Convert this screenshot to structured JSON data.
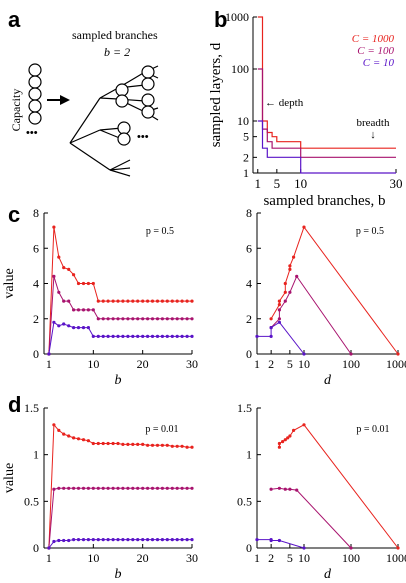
{
  "panel_labels": {
    "a": "a",
    "b": "b",
    "c": "c",
    "d": "d"
  },
  "diagram": {
    "capacity_label": "Capacity",
    "sampled_branches_label": "sampled branches",
    "b_equals": "b = 2",
    "ellipsis": "•••"
  },
  "colors": {
    "c1000": "#e8231e",
    "c100": "#a8136e",
    "c10": "#5a14c8"
  },
  "chart_data": [
    {
      "id": "b",
      "type": "line",
      "xlabel": "sampled branches, b",
      "ylabel": "sampled layers, d",
      "xlim": [
        0,
        30
      ],
      "ylim": [
        1,
        1000
      ],
      "yscale": "log",
      "xticks": [
        "1",
        "5",
        "10",
        "30"
      ],
      "yticks": [
        "1",
        "2",
        "5",
        "10",
        "100",
        "1000"
      ],
      "annotations": [
        "← depth",
        "breadth",
        "↓"
      ],
      "series": [
        {
          "name": "C = 1000",
          "color": "#e8231e",
          "x": [
            1,
            2,
            3,
            4,
            5,
            6,
            7,
            8,
            9,
            10,
            30
          ],
          "y": [
            1000,
            10,
            6,
            5,
            4,
            4,
            4,
            4,
            4,
            3,
            3
          ]
        },
        {
          "name": "C = 100",
          "color": "#a8136e",
          "x": [
            1,
            2,
            3,
            4,
            5,
            6,
            7,
            8,
            9,
            10,
            30
          ],
          "y": [
            100,
            7,
            4,
            3,
            3,
            3,
            3,
            3,
            3,
            2,
            2
          ]
        },
        {
          "name": "C = 10",
          "color": "#5a14c8",
          "x": [
            1,
            2,
            3,
            4,
            5,
            6,
            7,
            8,
            9,
            10,
            30
          ],
          "y": [
            10,
            3,
            2,
            2,
            2,
            2,
            2,
            2,
            2,
            1,
            1
          ]
        }
      ]
    },
    {
      "id": "c-left",
      "type": "line",
      "xlabel": "b",
      "ylabel": "value",
      "annotation": "p = 0.5",
      "xlim": [
        0,
        30
      ],
      "ylim": [
        0,
        8
      ],
      "xticks": [
        "1",
        "10",
        "20",
        "30"
      ],
      "yticks": [
        "0",
        "2",
        "4",
        "6",
        "8"
      ],
      "series": [
        {
          "color": "#e8231e",
          "x": [
            1,
            2,
            3,
            4,
            5,
            6,
            7,
            8,
            9,
            10,
            11,
            12,
            13,
            14,
            15,
            16,
            17,
            18,
            19,
            20,
            21,
            22,
            23,
            24,
            25,
            26,
            27,
            28,
            29,
            30
          ],
          "y": [
            0,
            7.2,
            5.5,
            4.9,
            4.8,
            4.5,
            4.0,
            4.0,
            4.0,
            4.0,
            3.0,
            3.0,
            3.0,
            3.0,
            3.0,
            3.0,
            3.0,
            3.0,
            3.0,
            3.0,
            3.0,
            3.0,
            3.0,
            3.0,
            3.0,
            3.0,
            3.0,
            3.0,
            3.0,
            3.0
          ]
        },
        {
          "color": "#a8136e",
          "x": [
            1,
            2,
            3,
            4,
            5,
            6,
            7,
            8,
            9,
            10,
            11,
            12,
            13,
            14,
            15,
            16,
            17,
            18,
            19,
            20,
            21,
            22,
            23,
            24,
            25,
            26,
            27,
            28,
            29,
            30
          ],
          "y": [
            0,
            4.4,
            3.5,
            3.0,
            3.0,
            2.5,
            2.5,
            2.5,
            2.5,
            2.5,
            2.0,
            2.0,
            2.0,
            2.0,
            2.0,
            2.0,
            2.0,
            2.0,
            2.0,
            2.0,
            2.0,
            2.0,
            2.0,
            2.0,
            2.0,
            2.0,
            2.0,
            2.0,
            2.0,
            2.0
          ]
        },
        {
          "color": "#5a14c8",
          "x": [
            1,
            2,
            3,
            4,
            5,
            6,
            7,
            8,
            9,
            10,
            11,
            12,
            13,
            14,
            15,
            16,
            17,
            18,
            19,
            20,
            21,
            22,
            23,
            24,
            25,
            26,
            27,
            28,
            29,
            30
          ],
          "y": [
            0,
            1.8,
            1.6,
            1.7,
            1.6,
            1.5,
            1.5,
            1.5,
            1.5,
            1.0,
            1.0,
            1.0,
            1.0,
            1.0,
            1.0,
            1.0,
            1.0,
            1.0,
            1.0,
            1.0,
            1.0,
            1.0,
            1.0,
            1.0,
            1.0,
            1.0,
            1.0,
            1.0,
            1.0,
            1.0
          ]
        }
      ]
    },
    {
      "id": "c-right",
      "type": "line",
      "xlabel": "d",
      "annotation": "p = 0.5",
      "xscale": "log",
      "xlim": [
        1,
        1000
      ],
      "ylim": [
        0,
        8
      ],
      "xticks": [
        "1",
        "2",
        "5",
        "10",
        "100",
        "1000"
      ],
      "yticks": [
        "0",
        "2",
        "4",
        "6",
        "8"
      ],
      "series": [
        {
          "color": "#e8231e",
          "x": [
            2,
            3,
            3,
            4,
            4,
            5,
            5,
            6,
            10,
            1000
          ],
          "y": [
            2.0,
            2.8,
            3.0,
            3.5,
            4.0,
            4.8,
            5.0,
            5.5,
            7.2,
            0
          ]
        },
        {
          "color": "#a8136e",
          "x": [
            2,
            3,
            3,
            4,
            5,
            7,
            100
          ],
          "y": [
            1.5,
            2.0,
            2.5,
            3.0,
            3.5,
            4.4,
            0
          ]
        },
        {
          "color": "#5a14c8",
          "x": [
            1,
            2,
            2,
            3,
            10
          ],
          "y": [
            1.0,
            1.0,
            1.5,
            1.8,
            0
          ]
        }
      ]
    },
    {
      "id": "d-left",
      "type": "line",
      "xlabel": "b",
      "ylabel": "value",
      "annotation": "p = 0.01",
      "xlim": [
        0,
        30
      ],
      "ylim": [
        0,
        1.5
      ],
      "xticks": [
        "1",
        "10",
        "20",
        "30"
      ],
      "yticks": [
        "0",
        "0.5",
        "1",
        "1.5"
      ],
      "series": [
        {
          "color": "#e8231e",
          "x": [
            1,
            2,
            3,
            4,
            5,
            6,
            7,
            8,
            9,
            10,
            11,
            12,
            13,
            14,
            15,
            16,
            17,
            18,
            19,
            20,
            21,
            22,
            23,
            24,
            25,
            26,
            27,
            28,
            29,
            30
          ],
          "y": [
            0,
            1.32,
            1.26,
            1.22,
            1.2,
            1.18,
            1.17,
            1.16,
            1.15,
            1.12,
            1.12,
            1.12,
            1.12,
            1.12,
            1.12,
            1.11,
            1.11,
            1.11,
            1.11,
            1.11,
            1.1,
            1.1,
            1.1,
            1.1,
            1.1,
            1.09,
            1.09,
            1.09,
            1.08,
            1.08
          ]
        },
        {
          "color": "#a8136e",
          "x": [
            1,
            2,
            3,
            4,
            5,
            6,
            7,
            8,
            9,
            10,
            11,
            12,
            13,
            14,
            15,
            16,
            17,
            18,
            19,
            20,
            21,
            22,
            23,
            24,
            25,
            26,
            27,
            28,
            29,
            30
          ],
          "y": [
            0,
            0.63,
            0.64,
            0.64,
            0.64,
            0.64,
            0.64,
            0.64,
            0.64,
            0.64,
            0.64,
            0.64,
            0.64,
            0.64,
            0.64,
            0.64,
            0.64,
            0.64,
            0.64,
            0.64,
            0.64,
            0.64,
            0.64,
            0.64,
            0.64,
            0.64,
            0.64,
            0.64,
            0.64,
            0.64
          ]
        },
        {
          "color": "#5a14c8",
          "x": [
            1,
            2,
            3,
            4,
            5,
            6,
            7,
            8,
            9,
            10,
            11,
            12,
            13,
            14,
            15,
            16,
            17,
            18,
            19,
            20,
            21,
            22,
            23,
            24,
            25,
            26,
            27,
            28,
            29,
            30
          ],
          "y": [
            0,
            0.07,
            0.08,
            0.08,
            0.08,
            0.09,
            0.09,
            0.09,
            0.09,
            0.09,
            0.09,
            0.09,
            0.09,
            0.09,
            0.09,
            0.09,
            0.09,
            0.09,
            0.09,
            0.09,
            0.09,
            0.09,
            0.09,
            0.09,
            0.09,
            0.09,
            0.09,
            0.09,
            0.09,
            0.09
          ]
        }
      ]
    },
    {
      "id": "d-right",
      "type": "line",
      "xlabel": "d",
      "annotation": "p = 0.01",
      "xscale": "log",
      "xlim": [
        1,
        1000
      ],
      "ylim": [
        0,
        1.5
      ],
      "xticks": [
        "1",
        "2",
        "5",
        "10",
        "100",
        "1000"
      ],
      "yticks": [
        "0",
        "0.5",
        "1",
        "1.5"
      ],
      "series": [
        {
          "color": "#e8231e",
          "x": [
            3,
            3,
            3.5,
            4,
            4.5,
            5,
            6,
            10,
            1000
          ],
          "y": [
            1.08,
            1.12,
            1.14,
            1.16,
            1.18,
            1.2,
            1.26,
            1.32,
            0
          ]
        },
        {
          "color": "#a8136e",
          "x": [
            2,
            3,
            4,
            5,
            7,
            100
          ],
          "y": [
            0.63,
            0.64,
            0.63,
            0.63,
            0.62,
            0
          ]
        },
        {
          "color": "#5a14c8",
          "x": [
            1,
            2,
            2,
            3,
            10
          ],
          "y": [
            0.09,
            0.09,
            0.08,
            0.08,
            0
          ]
        }
      ]
    }
  ]
}
